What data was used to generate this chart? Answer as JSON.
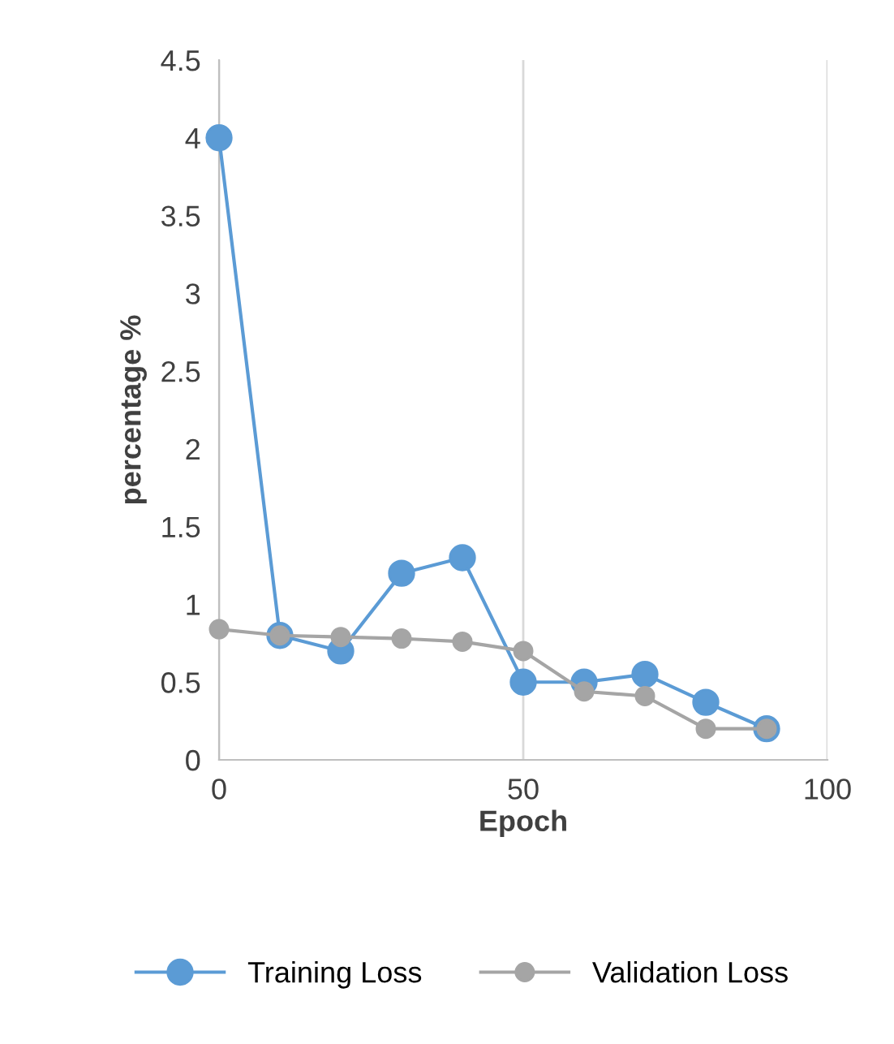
{
  "chart_data": {
    "type": "line",
    "xlabel": "Epoch",
    "ylabel": "percentage %",
    "x": [
      0,
      10,
      20,
      30,
      40,
      50,
      60,
      70,
      80,
      90
    ],
    "series": [
      {
        "name": "Training Loss",
        "color": "#5b9bd5",
        "values": [
          4.0,
          0.8,
          0.7,
          1.2,
          1.3,
          0.5,
          0.5,
          0.55,
          0.37,
          0.2
        ]
      },
      {
        "name": "Validation Loss",
        "color": "#a5a5a5",
        "values": [
          0.84,
          0.8,
          0.79,
          0.78,
          0.76,
          0.7,
          0.44,
          0.41,
          0.2,
          0.2
        ]
      }
    ],
    "xlim": [
      0,
      100
    ],
    "xticks": [
      0,
      50,
      100
    ],
    "ylim": [
      0,
      4.5
    ],
    "yticks": [
      0,
      0.5,
      1,
      1.5,
      2,
      2.5,
      3,
      3.5,
      4,
      4.5
    ],
    "grid": "x",
    "legend": "bottom",
    "marker": "circle",
    "line_style": "solid"
  }
}
